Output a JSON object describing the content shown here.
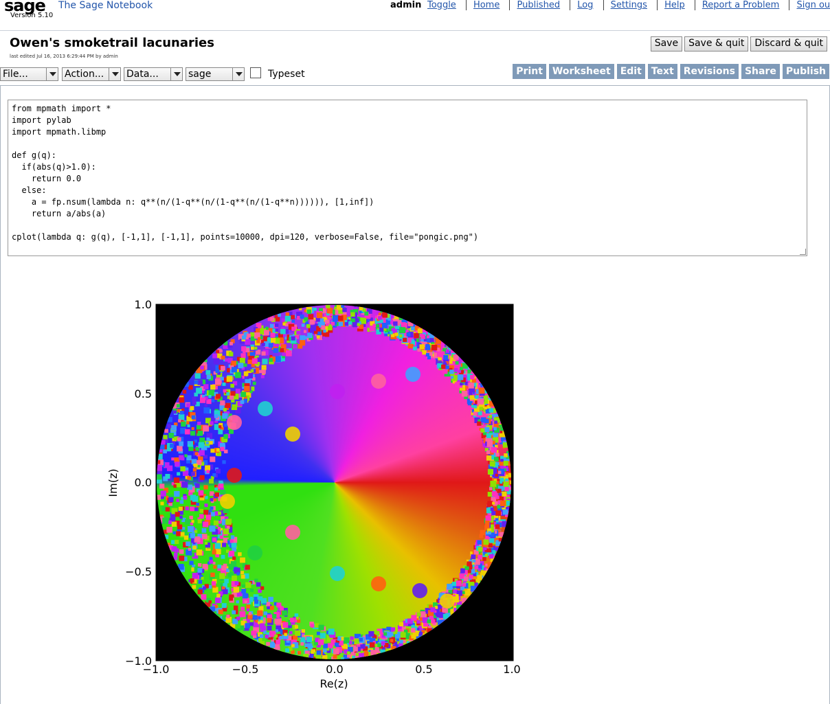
{
  "brand": {
    "logo": "sage",
    "title": "The Sage Notebook",
    "version": "Version 5.10"
  },
  "user": "admin",
  "top_links": [
    "Toggle",
    "Home",
    "Published",
    "Log",
    "Settings",
    "Help",
    "Report a Problem",
    "Sign out"
  ],
  "worksheet": {
    "title": "Owen's smoketrail lacunaries",
    "last_edited": "last edited Jul 16, 2013 6:29:44 PM by admin",
    "buttons": [
      "Save",
      "Save & quit",
      "Discard & quit"
    ]
  },
  "selects": {
    "file": "File...",
    "action": "Action...",
    "data": "Data...",
    "system": "sage"
  },
  "typeset_label": "Typeset",
  "tabs": [
    "Print",
    "Worksheet",
    "Edit",
    "Text",
    "Revisions",
    "Share",
    "Publish"
  ],
  "cell": {
    "code": "from mpmath import *\nimport pylab\nimport mpmath.libmp\n\ndef g(q):\n  if(abs(q)>1.0):\n    return 0.0\n  else:\n    a = fp.nsum(lambda n: q**(n/(1-q**(n/(1-q**(n/(1-q**n)))))), [1,inf])\n    return a/abs(a)\n\ncplot(lambda q: g(q), [-1,1], [-1,1], points=10000, dpi=120, verbose=False, file=\"pongic.png\")"
  },
  "chart_data": {
    "type": "heatmap",
    "xlabel": "Re(z)",
    "ylabel": "Im(z)",
    "xlim": [
      -1.0,
      1.0
    ],
    "ylim": [
      -1.0,
      1.0
    ],
    "xticks": [
      "−1.0",
      "−0.5",
      "0.0",
      "0.5",
      "1.0"
    ],
    "yticks": [
      "1.0",
      "0.5",
      "0.0",
      "−0.5",
      "−1.0"
    ],
    "background_color": "#000000"
  }
}
